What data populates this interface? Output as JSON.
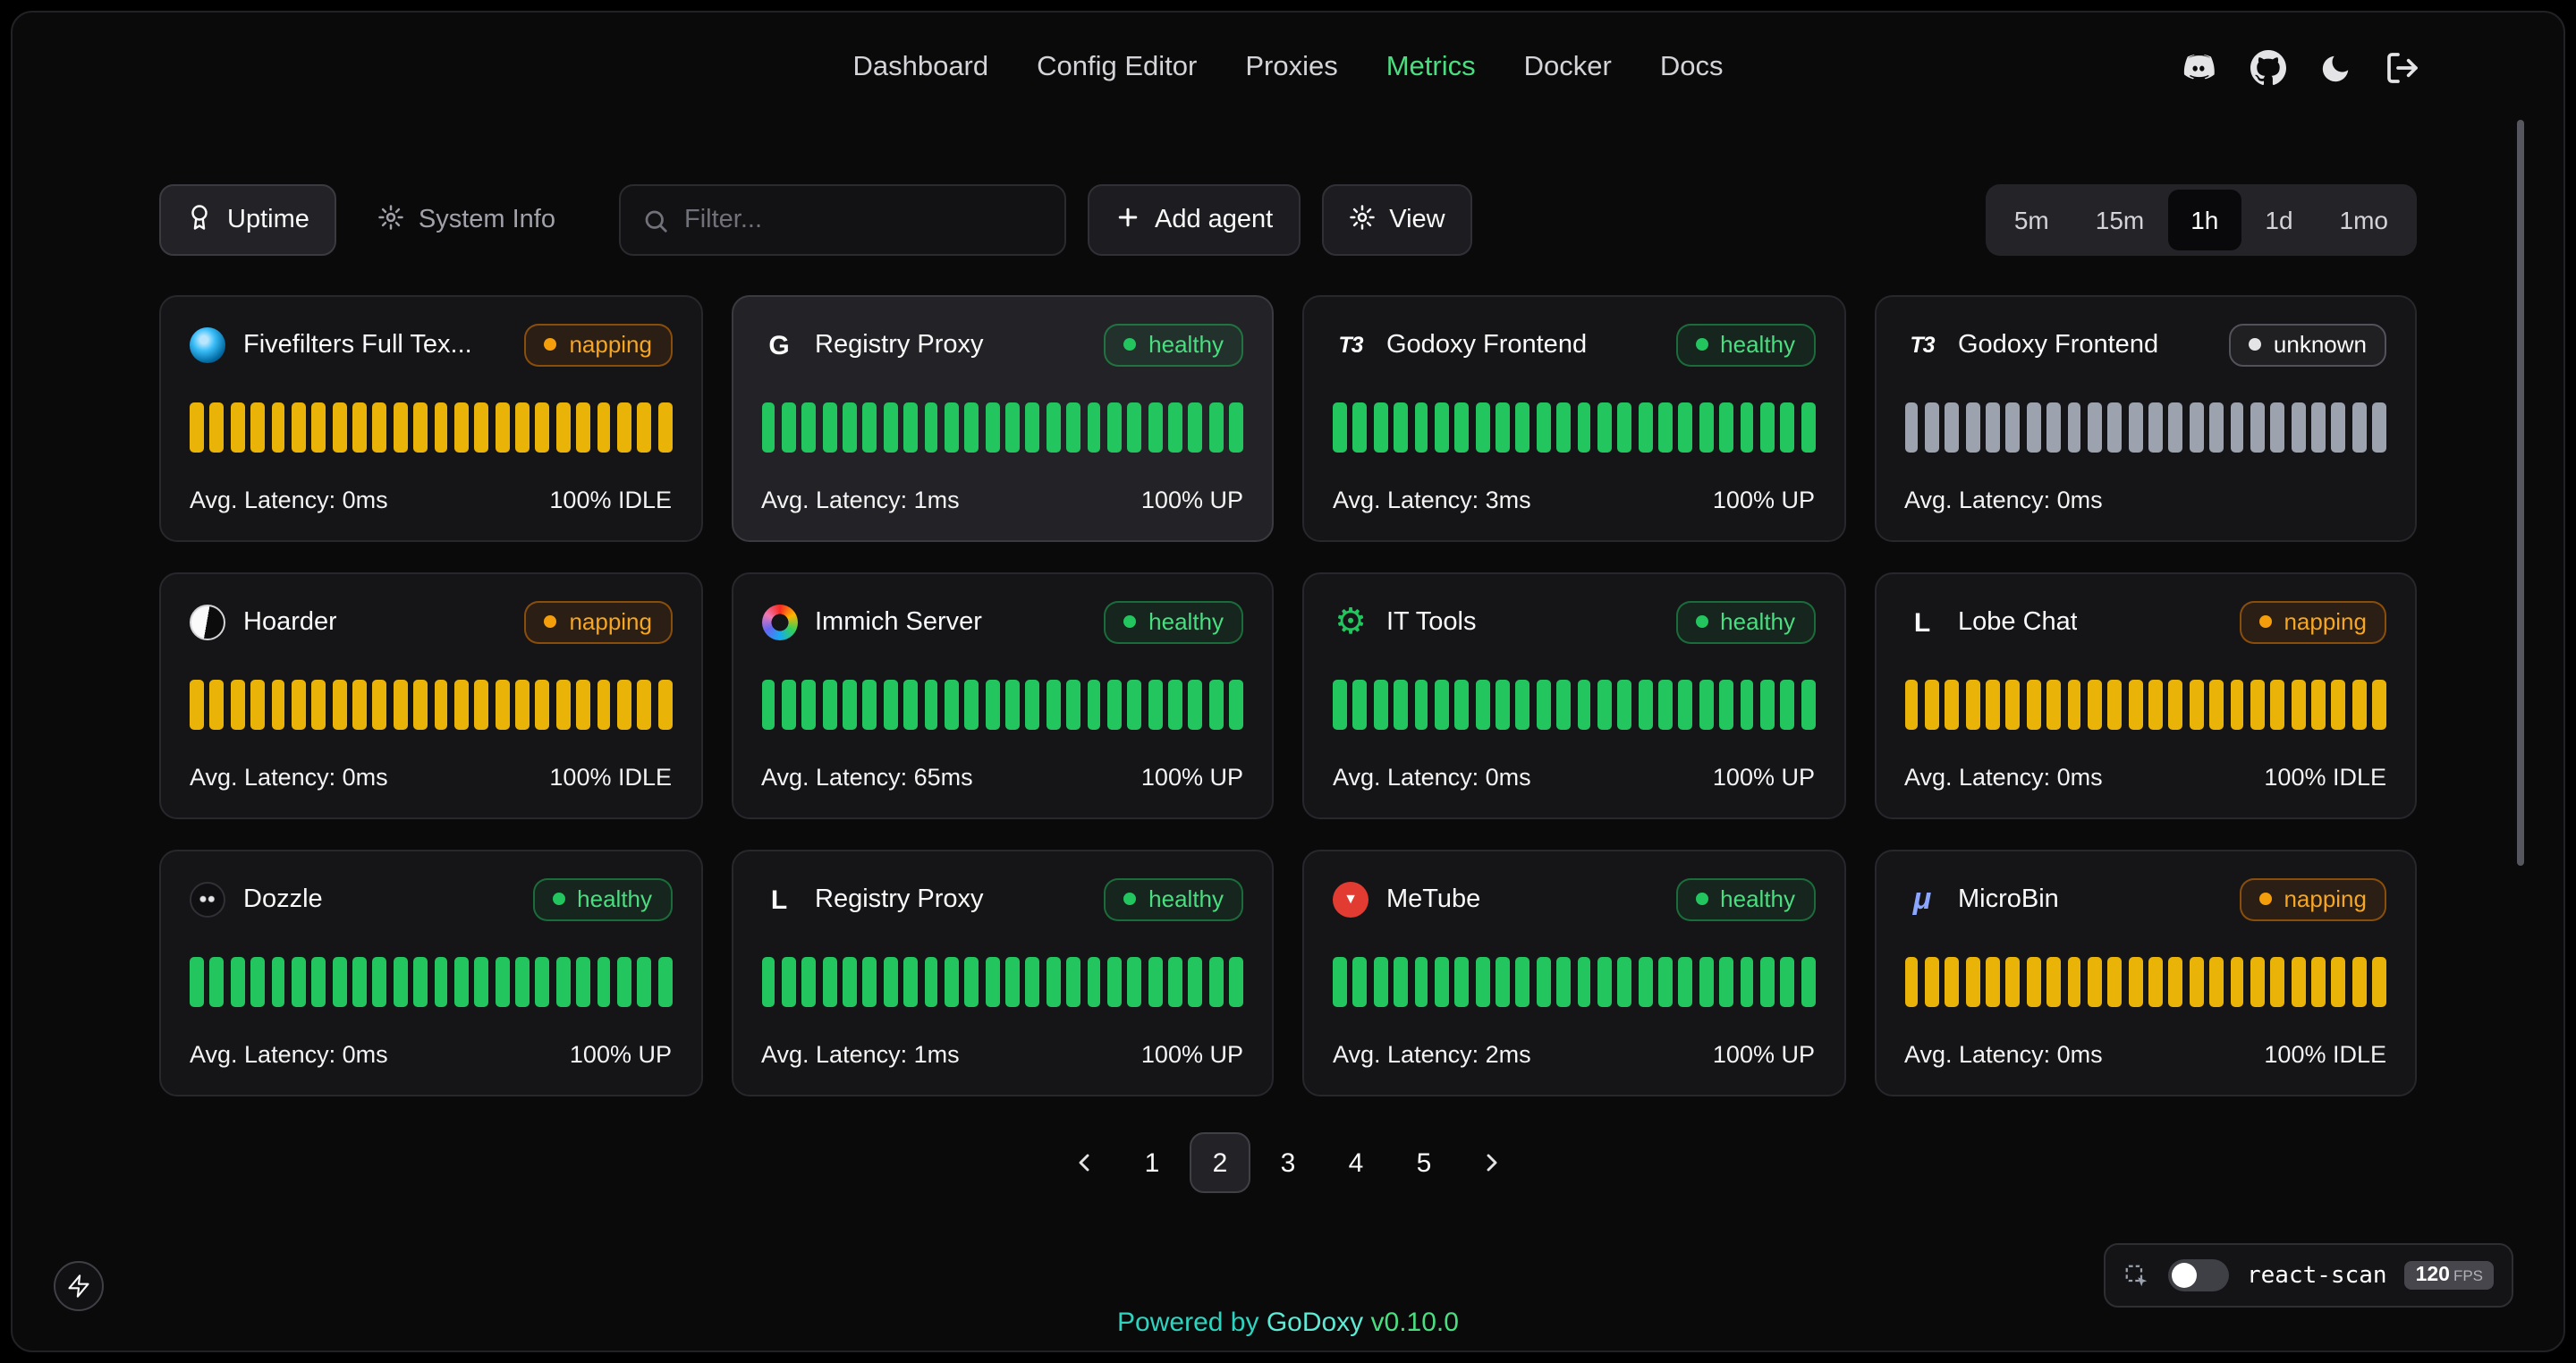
{
  "nav": {
    "items": [
      {
        "label": "Dashboard",
        "active": false
      },
      {
        "label": "Config Editor",
        "active": false
      },
      {
        "label": "Proxies",
        "active": false
      },
      {
        "label": "Metrics",
        "active": true
      },
      {
        "label": "Docker",
        "active": false
      },
      {
        "label": "Docs",
        "active": false
      }
    ]
  },
  "toolbar": {
    "uptime_label": "Uptime",
    "system_info_label": "System Info",
    "filter_placeholder": "Filter...",
    "add_agent_label": "Add agent",
    "view_label": "View",
    "time_ranges": [
      {
        "label": "5m",
        "active": false
      },
      {
        "label": "15m",
        "active": false
      },
      {
        "label": "1h",
        "active": true
      },
      {
        "label": "1d",
        "active": false
      },
      {
        "label": "1mo",
        "active": false
      }
    ]
  },
  "colors": {
    "bar_up": "#22c55e",
    "bar_idle": "#eab308",
    "bar_unknown": "#9ca3af",
    "accent_green": "#4ade80",
    "badge_napping": "#f5a623"
  },
  "cards": [
    {
      "title": "Fivefilters Full Tex...",
      "icon": "fivefilters",
      "glyph": "",
      "status": "napping",
      "latency": "Avg. Latency: 0ms",
      "uptime": "100% IDLE",
      "bars": "yellow",
      "bar_count": 24,
      "highlight": false
    },
    {
      "title": "Registry Proxy",
      "icon": "letter",
      "glyph": "G",
      "status": "healthy",
      "latency": "Avg. Latency: 1ms",
      "uptime": "100% UP",
      "bars": "green",
      "bar_count": 24,
      "highlight": true
    },
    {
      "title": "Godoxy Frontend",
      "icon": "t3",
      "glyph": "T3",
      "status": "healthy",
      "latency": "Avg. Latency: 3ms",
      "uptime": "100% UP",
      "bars": "green",
      "bar_count": 24,
      "highlight": false
    },
    {
      "title": "Godoxy Frontend",
      "icon": "t3",
      "glyph": "T3",
      "status": "unknown",
      "latency": "Avg. Latency: 0ms",
      "uptime": "",
      "bars": "gray",
      "bar_count": 24,
      "highlight": false
    },
    {
      "title": "Hoarder",
      "icon": "hoarder",
      "glyph": "",
      "status": "napping",
      "latency": "Avg. Latency: 0ms",
      "uptime": "100% IDLE",
      "bars": "yellow",
      "bar_count": 24,
      "highlight": false
    },
    {
      "title": "Immich Server",
      "icon": "immich",
      "glyph": "",
      "status": "healthy",
      "latency": "Avg. Latency: 65ms",
      "uptime": "100% UP",
      "bars": "green",
      "bar_count": 24,
      "highlight": false
    },
    {
      "title": "IT Tools",
      "icon": "gear-green",
      "glyph": "⚙",
      "status": "healthy",
      "latency": "Avg. Latency: 0ms",
      "uptime": "100% UP",
      "bars": "green",
      "bar_count": 24,
      "highlight": false
    },
    {
      "title": "Lobe Chat",
      "icon": "letter",
      "glyph": "L",
      "status": "napping",
      "latency": "Avg. Latency: 0ms",
      "uptime": "100% IDLE",
      "bars": "yellow",
      "bar_count": 24,
      "highlight": false
    },
    {
      "title": "Dozzle",
      "icon": "dozzle",
      "glyph": "",
      "status": "healthy",
      "latency": "Avg. Latency: 0ms",
      "uptime": "100% UP",
      "bars": "green",
      "bar_count": 24,
      "highlight": false
    },
    {
      "title": "Registry Proxy",
      "icon": "letter",
      "glyph": "L",
      "status": "healthy",
      "latency": "Avg. Latency: 1ms",
      "uptime": "100% UP",
      "bars": "green",
      "bar_count": 24,
      "highlight": false
    },
    {
      "title": "MeTube",
      "icon": "metube",
      "glyph": "▼",
      "status": "healthy",
      "latency": "Avg. Latency: 2ms",
      "uptime": "100% UP",
      "bars": "green",
      "bar_count": 24,
      "highlight": false
    },
    {
      "title": "MicroBin",
      "icon": "microbin",
      "glyph": "μ",
      "status": "napping",
      "latency": "Avg. Latency: 0ms",
      "uptime": "100% IDLE",
      "bars": "yellow",
      "bar_count": 24,
      "highlight": false
    }
  ],
  "pagination": {
    "pages": [
      "1",
      "2",
      "3",
      "4",
      "5"
    ],
    "active": "2"
  },
  "footer": {
    "powered_by": "Powered by",
    "brand": "GoDoxy",
    "version": "v0.10.0"
  },
  "react_scan": {
    "label": "react-scan",
    "fps": "120",
    "fps_unit": "FPS",
    "toggle_on": false
  }
}
